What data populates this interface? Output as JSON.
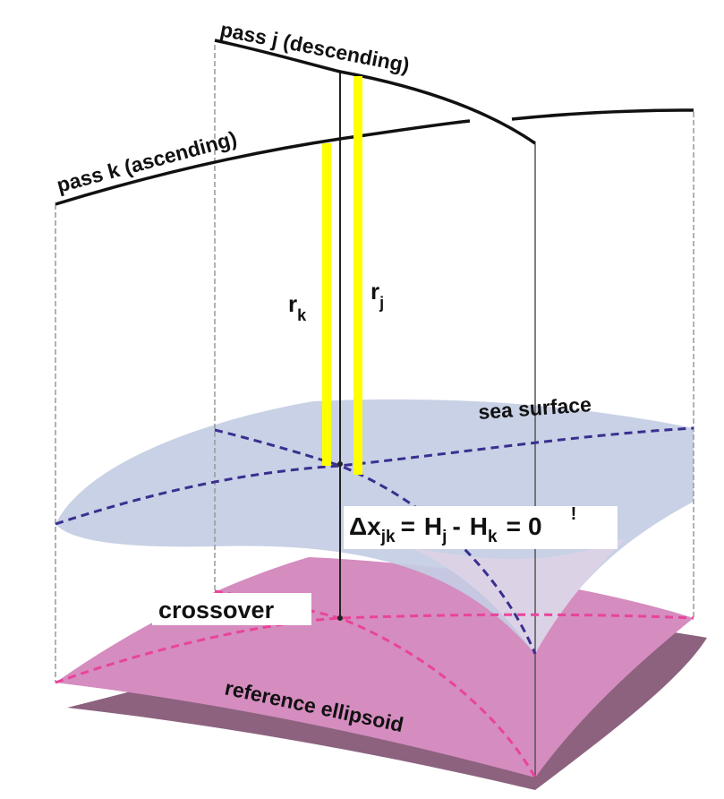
{
  "labels": {
    "pass_j": "pass  j (descending)",
    "pass_k": "pass  k (ascending)",
    "r_k": {
      "symbol": "r",
      "sub": "k"
    },
    "r_j": {
      "symbol": "r",
      "sub": "j"
    },
    "sea_surface": "sea  surface",
    "crossover": "crossover",
    "reference": "reference ellipsoid"
  },
  "equation": {
    "lhs": "Δx",
    "lhs_sub": "jk",
    "eq": "=",
    "h1": "H",
    "h1_sub": "j",
    "minus": "-",
    "h2": "H",
    "h2_sub": "k",
    "rel": "=",
    "rel_mark": "!",
    "rhs": "0"
  }
}
